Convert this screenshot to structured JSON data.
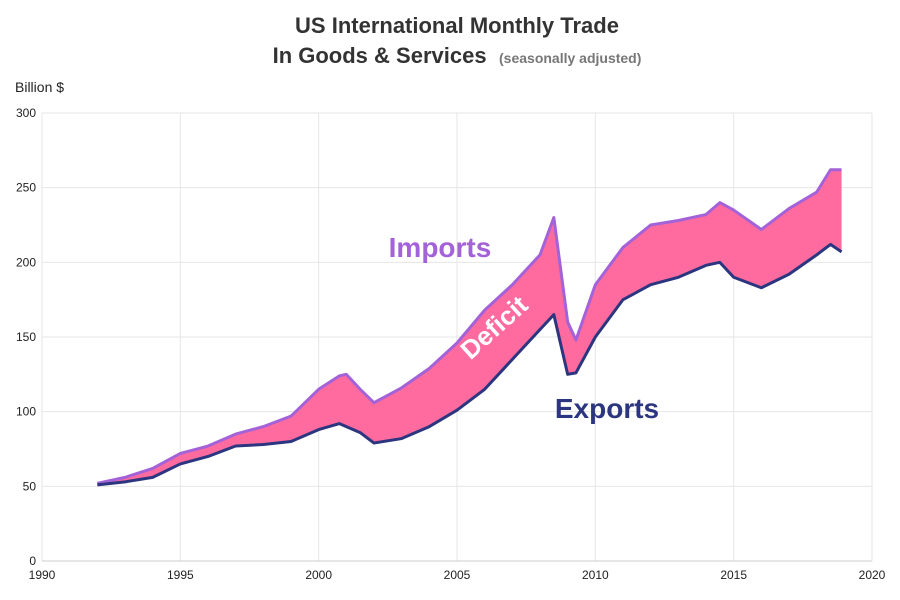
{
  "chart_data": {
    "type": "area",
    "title": "US International Monthly Trade",
    "title_line2": "In Goods & Services",
    "subtitle": "(seasonally adjusted)",
    "ylabel": "Billion $",
    "xlabel": "",
    "xlim": [
      1990,
      2020
    ],
    "ylim": [
      0,
      300
    ],
    "x_ticks": [
      "1990",
      "1995",
      "2000",
      "2005",
      "2010",
      "2015",
      "2020"
    ],
    "y_ticks": [
      "0",
      "50",
      "100",
      "150",
      "200",
      "250",
      "300"
    ],
    "grid": true,
    "annotations": {
      "imports": "Imports",
      "deficit": "Deficit",
      "exports": "Exports"
    },
    "colors": {
      "imports": "#a362d8",
      "exports": "#2b3580",
      "deficit": "#ff6b9e",
      "grid": "#e6e6e6",
      "title": "#333333",
      "subtitle": "#777777"
    },
    "series": [
      {
        "name": "Imports",
        "x": [
          1992.0,
          1993.0,
          1994.0,
          1995.0,
          1996.0,
          1997.0,
          1998.0,
          1999.0,
          2000.0,
          2000.75,
          2001.0,
          2001.5,
          2002.0,
          2003.0,
          2004.0,
          2005.0,
          2006.0,
          2007.0,
          2008.0,
          2008.5,
          2009.0,
          2009.3,
          2010.0,
          2011.0,
          2012.0,
          2013.0,
          2014.0,
          2014.5,
          2015.0,
          2016.0,
          2017.0,
          2018.0,
          2018.5,
          2018.9
        ],
        "values": [
          52,
          56,
          62,
          72,
          77,
          85,
          90,
          97,
          115,
          124,
          125,
          115,
          106,
          116,
          129,
          146,
          168,
          185,
          205,
          230,
          160,
          148,
          185,
          210,
          225,
          228,
          232,
          240,
          235,
          222,
          236,
          247,
          262,
          262
        ]
      },
      {
        "name": "Exports",
        "x": [
          1992.0,
          1993.0,
          1994.0,
          1995.0,
          1996.0,
          1997.0,
          1998.0,
          1999.0,
          2000.0,
          2000.75,
          2001.0,
          2001.5,
          2002.0,
          2003.0,
          2004.0,
          2005.0,
          2006.0,
          2007.0,
          2008.0,
          2008.5,
          2009.0,
          2009.3,
          2010.0,
          2011.0,
          2012.0,
          2013.0,
          2014.0,
          2014.5,
          2015.0,
          2016.0,
          2017.0,
          2018.0,
          2018.5,
          2018.9
        ],
        "values": [
          51,
          53,
          56,
          65,
          70,
          77,
          78,
          80,
          88,
          92,
          90,
          86,
          79,
          82,
          90,
          101,
          115,
          135,
          155,
          165,
          125,
          126,
          150,
          175,
          185,
          190,
          198,
          200,
          190,
          183,
          192,
          205,
          212,
          207
        ]
      }
    ]
  }
}
